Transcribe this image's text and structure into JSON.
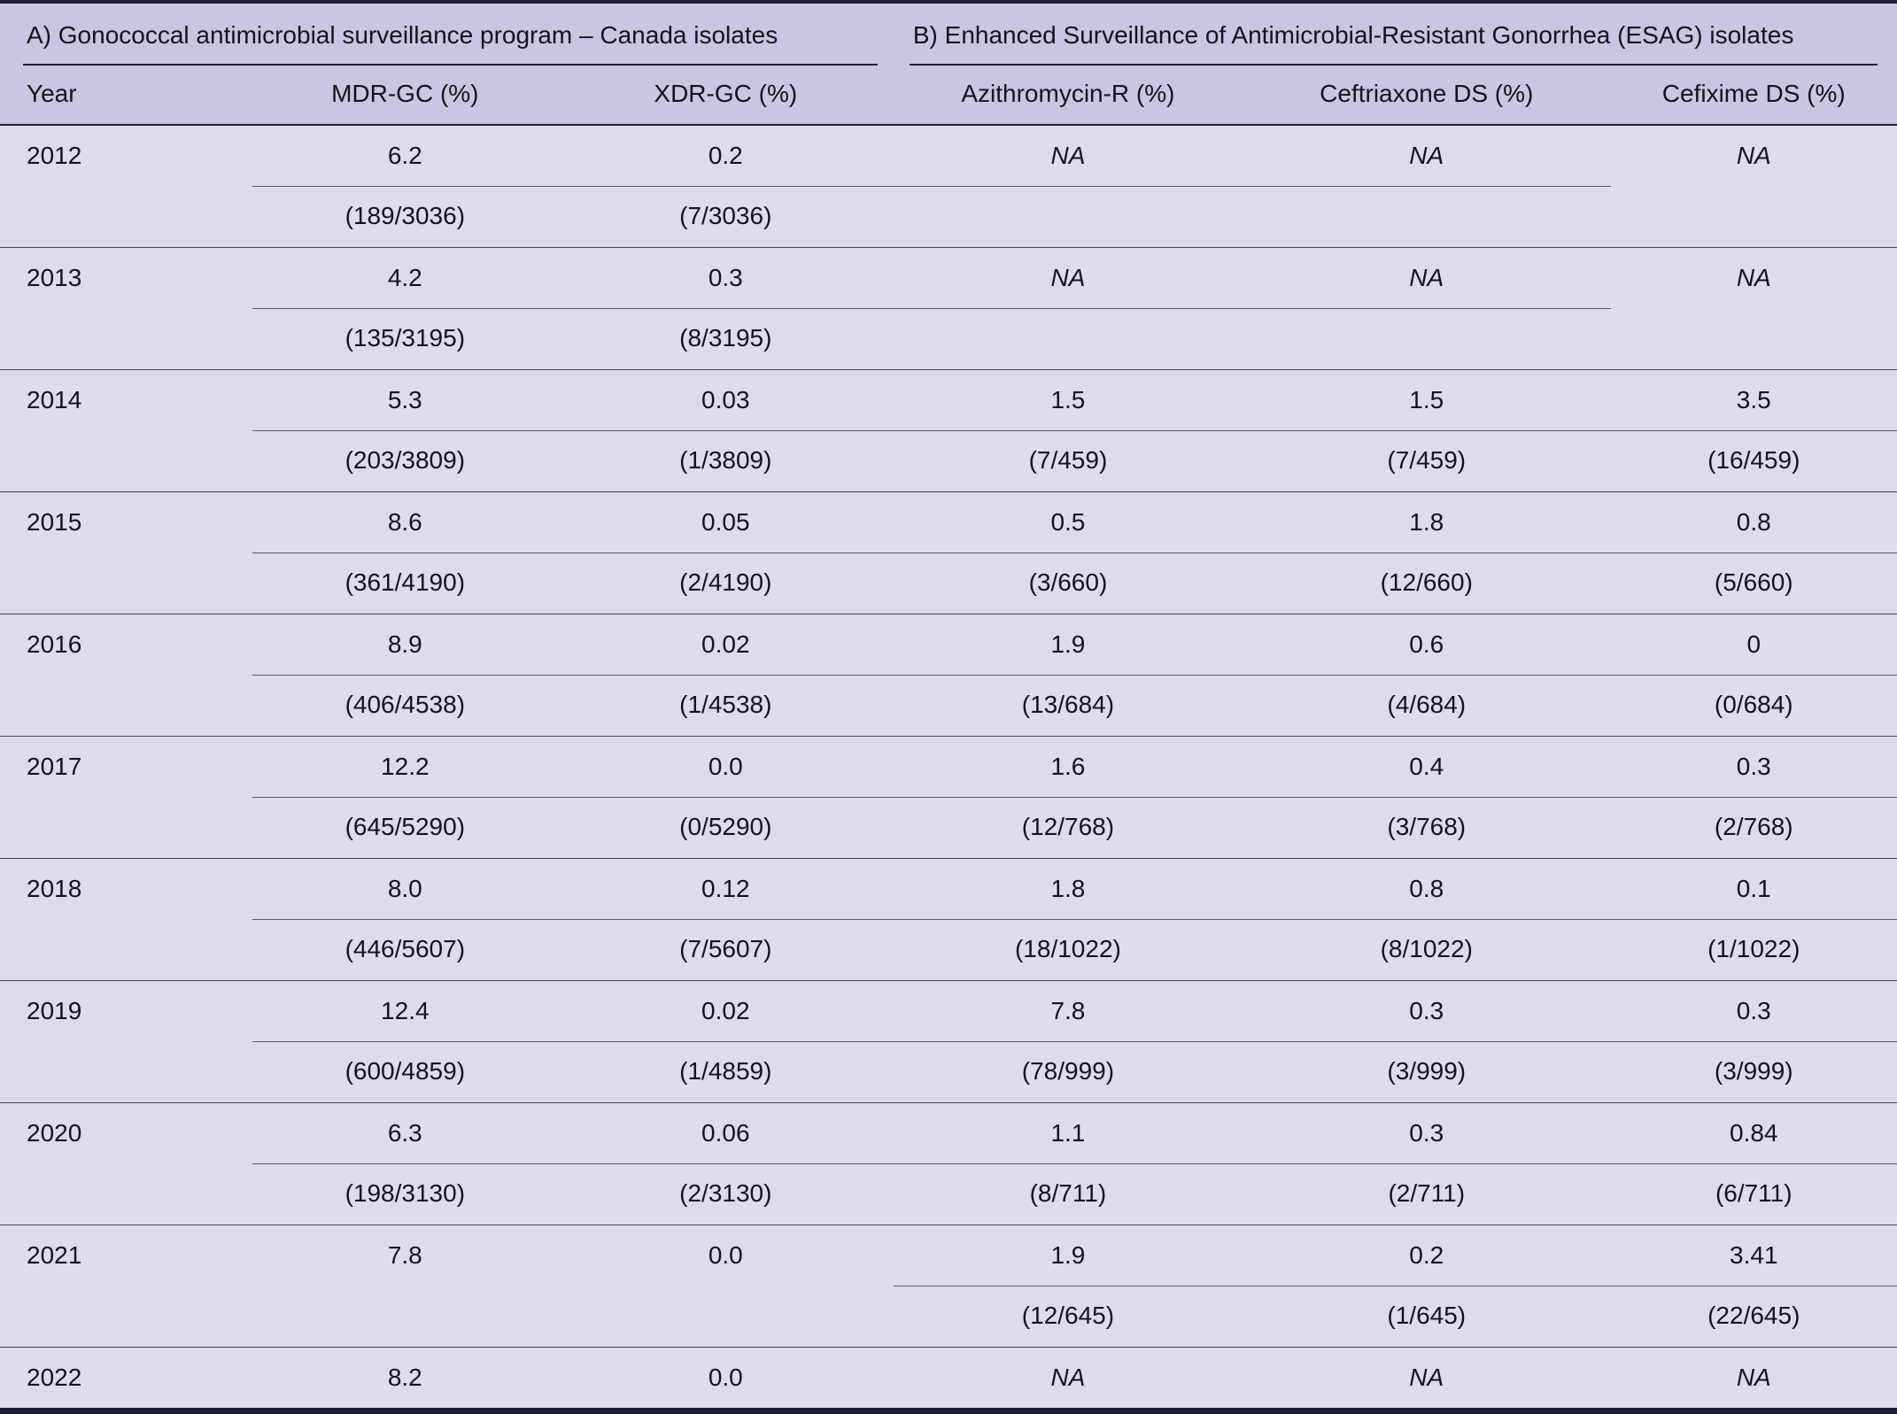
{
  "title": "Gonococcal antimicrobial surveillance table",
  "colors": {
    "header_bg": "#c9c6e1",
    "body_bg": "#dedcec",
    "rule_dark": "#1e1e38",
    "rule_thin": "#45455c",
    "rule_cline": "#5a5a70"
  },
  "table": {
    "section_headers": [
      {
        "label": "A) Gonococcal antimicrobial surveillance program – Canada isolates"
      },
      {
        "label": "B) Enhanced Surveillance of Antimicrobial-Resistant Gonorrhea (ESAG) isolates"
      }
    ],
    "columns": [
      "Year",
      "MDR-GC (%)",
      "XDR-GC (%)",
      "Azithromycin-R (%)",
      "Ceftriaxone DS (%)",
      "Cefixime DS (%)"
    ],
    "rows": [
      {
        "year": "2012",
        "values": [
          "6.2",
          "0.2",
          "NA",
          "NA",
          "NA"
        ],
        "fractions": [
          "(189/3036)",
          "(7/3036)",
          "",
          "",
          ""
        ],
        "underline": [
          true,
          true,
          true,
          true,
          false
        ]
      },
      {
        "year": "2013",
        "values": [
          "4.2",
          "0.3",
          "NA",
          "NA",
          "NA"
        ],
        "fractions": [
          "(135/3195)",
          "(8/3195)",
          "",
          "",
          ""
        ],
        "underline": [
          true,
          true,
          true,
          true,
          false
        ]
      },
      {
        "year": "2014",
        "values": [
          "5.3",
          "0.03",
          "1.5",
          "1.5",
          "3.5"
        ],
        "fractions": [
          "(203/3809)",
          "(1/3809)",
          "(7/459)",
          "(7/459)",
          "(16/459)"
        ],
        "underline": [
          true,
          true,
          true,
          true,
          true
        ]
      },
      {
        "year": "2015",
        "values": [
          "8.6",
          "0.05",
          "0.5",
          "1.8",
          "0.8"
        ],
        "fractions": [
          "(361/4190)",
          "(2/4190)",
          "(3/660)",
          "(12/660)",
          "(5/660)"
        ],
        "underline": [
          true,
          true,
          true,
          true,
          true
        ]
      },
      {
        "year": "2016",
        "values": [
          "8.9",
          "0.02",
          "1.9",
          "0.6",
          "0"
        ],
        "fractions": [
          "(406/4538)",
          "(1/4538)",
          "(13/684)",
          "(4/684)",
          "(0/684)"
        ],
        "underline": [
          true,
          true,
          true,
          true,
          true
        ]
      },
      {
        "year": "2017",
        "values": [
          "12.2",
          "0.0",
          "1.6",
          "0.4",
          "0.3"
        ],
        "fractions": [
          "(645/5290)",
          "(0/5290)",
          "(12/768)",
          "(3/768)",
          "(2/768)"
        ],
        "underline": [
          true,
          true,
          true,
          true,
          true
        ]
      },
      {
        "year": "2018",
        "values": [
          "8.0",
          "0.12",
          "1.8",
          "0.8",
          "0.1"
        ],
        "fractions": [
          "(446/5607)",
          "(7/5607)",
          "(18/1022)",
          "(8/1022)",
          "(1/1022)"
        ],
        "underline": [
          true,
          true,
          true,
          true,
          true
        ]
      },
      {
        "year": "2019",
        "values": [
          "12.4",
          "0.02",
          "7.8",
          "0.3",
          "0.3"
        ],
        "fractions": [
          "(600/4859)",
          "(1/4859)",
          "(78/999)",
          "(3/999)",
          "(3/999)"
        ],
        "underline": [
          true,
          true,
          true,
          true,
          true
        ]
      },
      {
        "year": "2020",
        "values": [
          "6.3",
          "0.06",
          "1.1",
          "0.3",
          "0.84"
        ],
        "fractions": [
          "(198/3130)",
          "(2/3130)",
          "(8/711)",
          "(2/711)",
          "(6/711)"
        ],
        "underline": [
          true,
          true,
          true,
          true,
          true
        ]
      },
      {
        "year": "2021",
        "values": [
          "7.8",
          "0.0",
          "1.9",
          "0.2",
          "3.41"
        ],
        "fractions": [
          "",
          "",
          "(12/645)",
          "(1/645)",
          "(22/645)"
        ],
        "underline": [
          false,
          false,
          true,
          true,
          true
        ]
      },
      {
        "year": "2022",
        "values": [
          "8.2",
          "0.0",
          "NA",
          "NA",
          "NA"
        ],
        "fractions": null,
        "underline": [
          false,
          false,
          false,
          false,
          false
        ]
      }
    ]
  }
}
